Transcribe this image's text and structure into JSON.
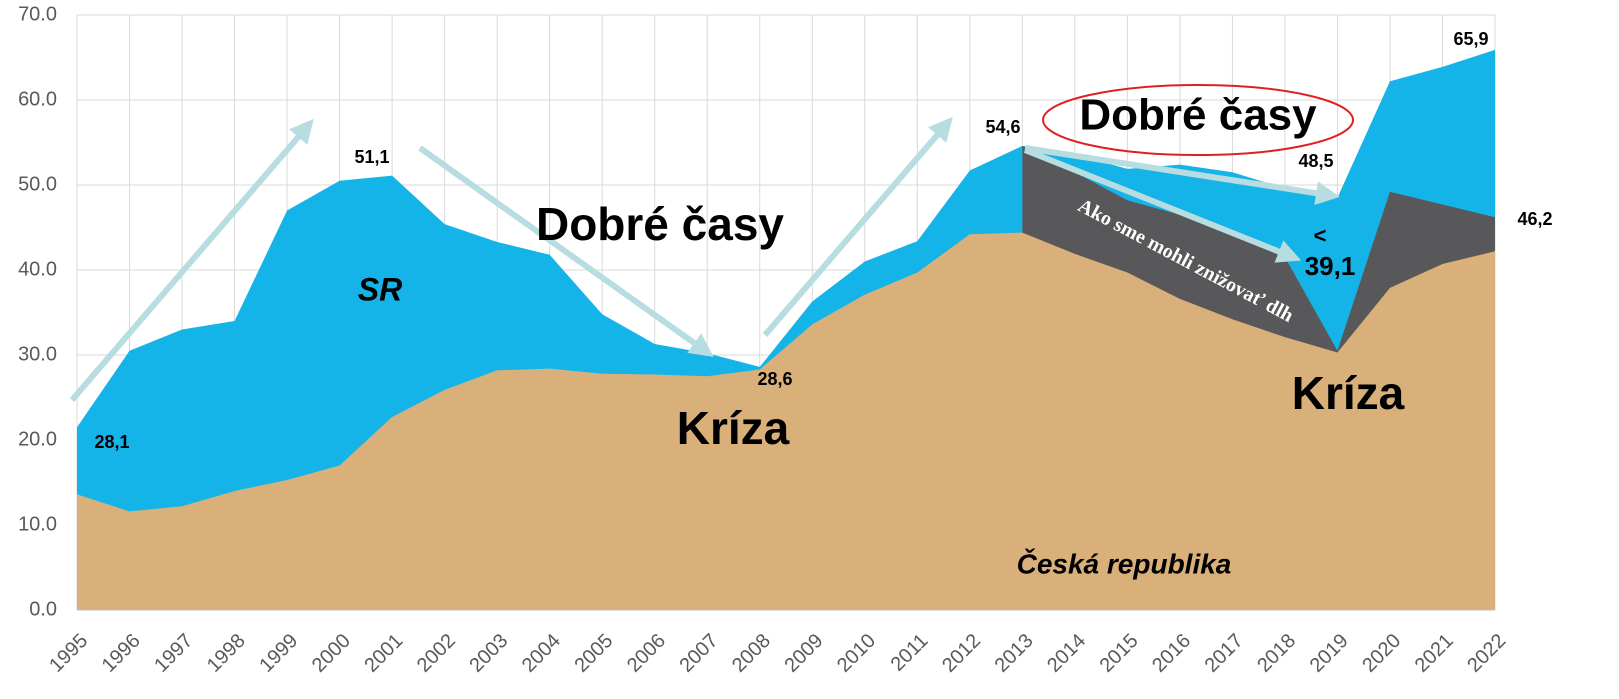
{
  "chart_data": {
    "type": "area",
    "categories": [
      "1995",
      "1996",
      "1997",
      "1998",
      "1999",
      "2000",
      "2001",
      "2002",
      "2003",
      "2004",
      "2005",
      "2006",
      "2007",
      "2008",
      "2009",
      "2010",
      "2011",
      "2012",
      "2013",
      "2014",
      "2015",
      "2016",
      "2017",
      "2018",
      "2019",
      "2020",
      "2021",
      "2022"
    ],
    "series": [
      {
        "name": "SR",
        "color": "#14b4e8",
        "values": [
          21.5,
          30.5,
          33,
          34,
          47,
          50.5,
          51.1,
          45.4,
          43.3,
          41.8,
          34.8,
          31.3,
          30.2,
          28.6,
          36.3,
          41,
          43.4,
          51.7,
          54.6,
          53.6,
          51.9,
          52.4,
          51.5,
          49.6,
          48.5,
          62.2,
          63.9,
          65.9
        ]
      },
      {
        "name": "Ako sme mohli znižovať dlh",
        "color": "#58585a",
        "values": [
          null,
          null,
          null,
          null,
          null,
          null,
          null,
          null,
          null,
          null,
          null,
          null,
          null,
          null,
          null,
          null,
          null,
          null,
          54.6,
          51.5,
          48.2,
          46.5,
          44.5,
          41.5,
          30.5,
          49.2,
          47.7,
          46.2
        ]
      },
      {
        "name": "Česká republika",
        "color": "#d9b07a",
        "values": [
          13.6,
          11.6,
          12.2,
          14,
          15.3,
          17,
          22.7,
          25.9,
          28.2,
          28.4,
          27.8,
          27.7,
          27.5,
          28.3,
          33.6,
          37.1,
          39.7,
          44.2,
          44.4,
          41.9,
          39.7,
          36.6,
          34.2,
          32.1,
          30.3,
          37.9,
          40.7,
          42.2
        ]
      }
    ],
    "ylim": [
      0,
      70
    ],
    "yticks": [
      {
        "value": 0,
        "label": "0.0"
      },
      {
        "value": 10,
        "label": "10.0"
      },
      {
        "value": 20,
        "label": "20.0"
      },
      {
        "value": 30,
        "label": "30.0"
      },
      {
        "value": 40,
        "label": "40.0"
      },
      {
        "value": 50,
        "label": "50.0"
      },
      {
        "value": 60,
        "label": "60.0"
      },
      {
        "value": 70,
        "label": "70.0"
      }
    ],
    "grid": true,
    "annotations": [
      "28,1",
      "51,1",
      "28,6",
      "54,6",
      "48,5",
      "65,9",
      "46,2",
      "<",
      "39,1",
      "Dobré časy",
      "Dobré časy",
      "Kríza",
      "Kríza"
    ]
  }
}
